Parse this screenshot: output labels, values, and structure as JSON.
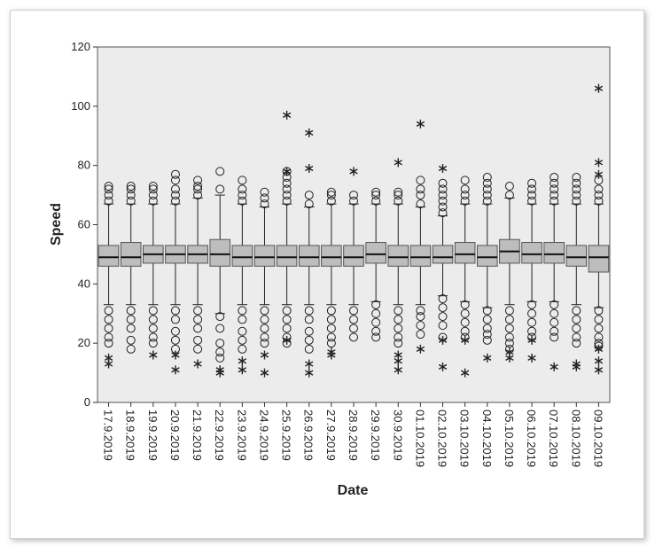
{
  "chart_data": {
    "type": "box",
    "x_label": "Date",
    "y_label": "Speed",
    "categories": [
      "17.9.2019",
      "18.9.2019",
      "19.9.2019",
      "20.9.2019",
      "21.9.2019",
      "22.9.2019",
      "23.9.2019",
      "24.9.2019",
      "25.9.2019",
      "26.9.2019",
      "27.9.2019",
      "28.9.2019",
      "29.9.2019",
      "30.9.2019",
      "01.10.2019",
      "02.10.2019",
      "03.10.2019",
      "04.10.2019",
      "05.10.2019",
      "06.10.2019",
      "07.10.2019",
      "08.10.2019",
      "09.10.2019"
    ],
    "color": "#bdbdbd",
    "ylim": [
      0,
      120
    ],
    "yticks": [
      0,
      20,
      40,
      60,
      80,
      100,
      120
    ],
    "boxes": [
      {
        "low": 33,
        "q1": 46,
        "median": 49,
        "q3": 53,
        "high": 67,
        "outliers": [
          68,
          70,
          72,
          73,
          31,
          28,
          25,
          22,
          20
        ],
        "extremes": [
          15,
          13
        ]
      },
      {
        "low": 33,
        "q1": 46,
        "median": 49,
        "q3": 54,
        "high": 67,
        "outliers": [
          68,
          70,
          72,
          73,
          31,
          28,
          25,
          21,
          18
        ],
        "extremes": []
      },
      {
        "low": 33,
        "q1": 47,
        "median": 50,
        "q3": 53,
        "high": 67,
        "outliers": [
          68,
          70,
          72,
          73,
          31,
          28,
          25,
          22,
          20
        ],
        "extremes": [
          16
        ]
      },
      {
        "low": 33,
        "q1": 47,
        "median": 50,
        "q3": 53,
        "high": 67,
        "outliers": [
          68,
          70,
          72,
          75,
          77,
          31,
          28,
          24,
          21,
          18
        ],
        "extremes": [
          16,
          11
        ]
      },
      {
        "low": 33,
        "q1": 47,
        "median": 50,
        "q3": 53,
        "high": 69,
        "outliers": [
          70,
          72,
          73,
          75,
          31,
          28,
          25,
          21,
          18
        ],
        "extremes": [
          13
        ]
      },
      {
        "low": 30,
        "q1": 46,
        "median": 50,
        "q3": 55,
        "high": 70,
        "outliers": [
          72,
          78,
          29,
          25,
          20,
          17,
          15
        ],
        "extremes": [
          11,
          10
        ]
      },
      {
        "low": 33,
        "q1": 46,
        "median": 49,
        "q3": 53,
        "high": 67,
        "outliers": [
          68,
          70,
          72,
          75,
          31,
          28,
          24,
          21,
          18
        ],
        "extremes": [
          14,
          11
        ]
      },
      {
        "low": 33,
        "q1": 46,
        "median": 49,
        "q3": 53,
        "high": 66,
        "outliers": [
          67,
          69,
          71,
          31,
          28,
          25,
          22,
          20
        ],
        "extremes": [
          16,
          10
        ]
      },
      {
        "low": 33,
        "q1": 46,
        "median": 49,
        "q3": 53,
        "high": 67,
        "outliers": [
          68,
          70,
          72,
          74,
          76,
          78,
          31,
          28,
          25,
          22,
          20
        ],
        "extremes": [
          97,
          78,
          21
        ]
      },
      {
        "low": 33,
        "q1": 46,
        "median": 49,
        "q3": 53,
        "high": 66,
        "outliers": [
          67,
          70,
          31,
          28,
          24,
          21,
          18
        ],
        "extremes": [
          91,
          79,
          13,
          10
        ]
      },
      {
        "low": 33,
        "q1": 46,
        "median": 49,
        "q3": 53,
        "high": 67,
        "outliers": [
          68,
          70,
          71,
          31,
          28,
          25,
          22,
          20
        ],
        "extremes": [
          17,
          16
        ]
      },
      {
        "low": 33,
        "q1": 46,
        "median": 49,
        "q3": 53,
        "high": 67,
        "outliers": [
          68,
          70,
          31,
          28,
          25,
          22
        ],
        "extremes": [
          78
        ]
      },
      {
        "low": 34,
        "q1": 47,
        "median": 50,
        "q3": 54,
        "high": 67,
        "outliers": [
          68,
          70,
          71,
          33,
          30,
          27,
          24,
          22
        ],
        "extremes": []
      },
      {
        "low": 33,
        "q1": 46,
        "median": 49,
        "q3": 53,
        "high": 67,
        "outliers": [
          68,
          70,
          71,
          31,
          28,
          25,
          22,
          20
        ],
        "extremes": [
          81,
          16,
          14,
          11
        ]
      },
      {
        "low": 33,
        "q1": 46,
        "median": 49,
        "q3": 53,
        "high": 66,
        "outliers": [
          67,
          70,
          72,
          75,
          31,
          29,
          26,
          23
        ],
        "extremes": [
          94,
          18
        ]
      },
      {
        "low": 36,
        "q1": 47,
        "median": 49,
        "q3": 53,
        "high": 63,
        "outliers": [
          64,
          66,
          68,
          70,
          72,
          74,
          35,
          32,
          29,
          26,
          22
        ],
        "extremes": [
          79,
          21,
          12
        ]
      },
      {
        "low": 34,
        "q1": 47,
        "median": 50,
        "q3": 54,
        "high": 67,
        "outliers": [
          68,
          70,
          72,
          75,
          33,
          30,
          27,
          24,
          22
        ],
        "extremes": [
          21,
          10
        ]
      },
      {
        "low": 32,
        "q1": 46,
        "median": 49,
        "q3": 53,
        "high": 67,
        "outliers": [
          68,
          70,
          72,
          74,
          76,
          31,
          28,
          25,
          23,
          21
        ],
        "extremes": [
          15
        ]
      },
      {
        "low": 33,
        "q1": 47,
        "median": 51,
        "q3": 55,
        "high": 69,
        "outliers": [
          70,
          73,
          31,
          28,
          25,
          22,
          20,
          18
        ],
        "extremes": [
          17,
          15
        ]
      },
      {
        "low": 34,
        "q1": 47,
        "median": 50,
        "q3": 54,
        "high": 67,
        "outliers": [
          68,
          70,
          72,
          74,
          33,
          30,
          27,
          24,
          22
        ],
        "extremes": [
          21,
          15
        ]
      },
      {
        "low": 34,
        "q1": 47,
        "median": 50,
        "q3": 54,
        "high": 67,
        "outliers": [
          68,
          70,
          72,
          74,
          76,
          33,
          30,
          27,
          24,
          22
        ],
        "extremes": [
          12
        ]
      },
      {
        "low": 33,
        "q1": 46,
        "median": 49,
        "q3": 53,
        "high": 67,
        "outliers": [
          68,
          70,
          72,
          74,
          76,
          31,
          28,
          25,
          22,
          20
        ],
        "extremes": [
          13,
          12
        ]
      },
      {
        "low": 32,
        "q1": 44,
        "median": 49,
        "q3": 53,
        "high": 67,
        "outliers": [
          68,
          70,
          72,
          75,
          31,
          28,
          25,
          22,
          20,
          19
        ],
        "extremes": [
          106,
          81,
          77,
          18,
          14,
          11
        ]
      }
    ]
  }
}
